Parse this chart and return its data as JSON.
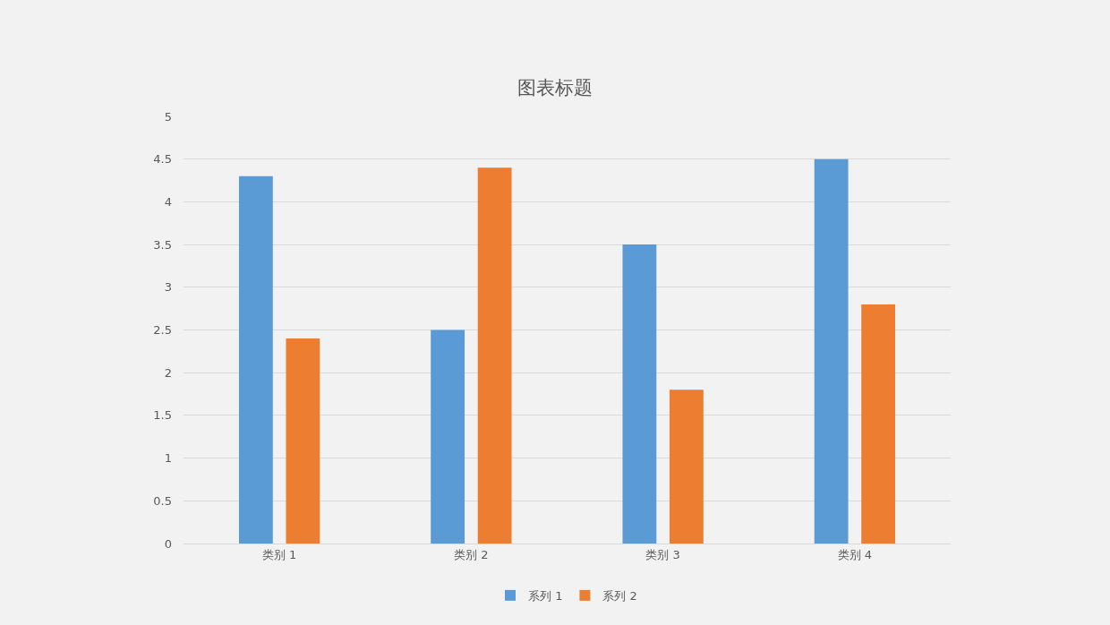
{
  "chart_data": {
    "type": "bar",
    "title": "图表标题",
    "categories": [
      "类别 1",
      "类别 2",
      "类别 3",
      "类别 4"
    ],
    "series": [
      {
        "name": "系列 1",
        "color": "#5b9bd5",
        "values": [
          4.3,
          2.5,
          3.5,
          4.5
        ]
      },
      {
        "name": "系列 2",
        "color": "#ed7d31",
        "values": [
          2.4,
          4.4,
          1.8,
          2.8
        ]
      }
    ],
    "ylim": [
      0,
      5
    ],
    "yticks": [
      0,
      0.5,
      1,
      1.5,
      2,
      2.5,
      3,
      3.5,
      4,
      4.5,
      5
    ],
    "grid": "y",
    "legend": "bottom"
  }
}
